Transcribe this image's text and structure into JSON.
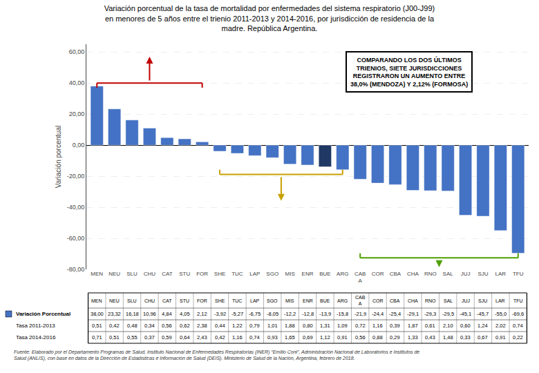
{
  "chart_data": {
    "type": "bar",
    "title": "Variación porcentual de la tasa de mortalidad por enfermedades del sistema respiratorio (J00-J99)\nen menores de 5 años entre el trienio 2011-2013 y 2014-2016, por jurisdicción de residencia de la\nmadre. República Argentina.",
    "ylabel": "Variación porcentual",
    "categories": [
      "MEN",
      "NEU",
      "SLU",
      "CHU",
      "CAT",
      "STU",
      "FOR",
      "SHE",
      "TUC",
      "LAP",
      "SGO",
      "MIS",
      "ENR",
      "BUE",
      "ARG",
      "CAB\nA",
      "COR",
      "CBA",
      "CHA",
      "RNO",
      "SAL",
      "JUJ",
      "SJU",
      "LAR",
      "TFU"
    ],
    "values": [
      38.0,
      23.32,
      16.18,
      10.96,
      4.84,
      4.05,
      2.12,
      -3.92,
      -5.27,
      -6.75,
      -8.05,
      -12.2,
      -12.8,
      -13.9,
      -15.8,
      -21.9,
      -24.4,
      -25.4,
      -29.1,
      -29.3,
      -29.5,
      -45.1,
      -45.7,
      -55.0,
      -69.6
    ],
    "colors": [
      "#4472C4",
      "#4472C4",
      "#4472C4",
      "#4472C4",
      "#4472C4",
      "#4472C4",
      "#4472C4",
      "#4472C4",
      "#4472C4",
      "#4472C4",
      "#4472C4",
      "#4472C4",
      "#4472C4",
      "#1F3864",
      "#4472C4",
      "#4472C4",
      "#4472C4",
      "#4472C4",
      "#4472C4",
      "#4472C4",
      "#4472C4",
      "#4472C4",
      "#4472C4",
      "#4472C4",
      "#4472C4"
    ],
    "ylim": [
      -80,
      65
    ],
    "yticks": [
      {
        "value": -80,
        "label": "-80,00"
      },
      {
        "value": -60,
        "label": "-60,00"
      },
      {
        "value": -40,
        "label": "-40,00"
      },
      {
        "value": -20,
        "label": "-20,00"
      },
      {
        "value": 0,
        "label": "0,00"
      },
      {
        "value": 20,
        "label": "20,00"
      },
      {
        "value": 40,
        "label": "40,00"
      },
      {
        "value": 60,
        "label": "60,00"
      }
    ],
    "grid": true,
    "annotation": "COMPARANDO LOS DOS ÚLTIMOS\nTRIENIOS, SIETE JURISDICCIONES\nREGISTRARON UN AUMENTO ENTRE\n38,0% (MENDOZA) Y 2,12% (FORMOSA)",
    "brackets": [
      {
        "from": "MEN",
        "to": "FOR",
        "color": "#C00000",
        "direction": "up"
      },
      {
        "from": "SHE",
        "to": "ARG",
        "color": "#C8A000",
        "direction": "down"
      },
      {
        "from": "CAB\nA",
        "to": "TFU",
        "color": "#4EA000",
        "direction": "down"
      }
    ],
    "table": [
      {
        "label": "Variación Porcentual",
        "cells": [
          "38,00",
          "23,32",
          "16,18",
          "10,96",
          "4,84",
          "4,05",
          "2,12",
          "-3,92",
          "-5,27",
          "-6,75",
          "-8,05",
          "-12,2",
          "-12,8",
          "-13,9",
          "-15,8",
          "-21,9",
          "-24,4",
          "-25,4",
          "-29,1",
          "-29,3",
          "-29,5",
          "-45,1",
          "-45,7",
          "-55,0",
          "-69,6"
        ]
      },
      {
        "label": "Tasa 2011-2013",
        "cells": [
          "0,51",
          "0,42",
          "0,48",
          "0,34",
          "0,56",
          "0,62",
          "2,38",
          "0,44",
          "1,22",
          "0,79",
          "1,01",
          "1,88",
          "0,80",
          "1,31",
          "1,09",
          "0,72",
          "1,16",
          "0,39",
          "1,87",
          "0,61",
          "2,10",
          "0,60",
          "1,24",
          "2,02",
          "0,74"
        ]
      },
      {
        "label": "Tasa 2014-2016",
        "cells": [
          "0,71",
          "0,51",
          "0,55",
          "0,37",
          "0,59",
          "0,64",
          "2,43",
          "0,42",
          "1,16",
          "0,74",
          "0,93",
          "1,65",
          "0,69",
          "1,12",
          "0,91",
          "0,56",
          "0,88",
          "0,29",
          "1,33",
          "0,43",
          "1,48",
          "0,33",
          "0,67",
          "0,91",
          "0,22"
        ]
      }
    ],
    "source": "Fuente: Elaborado por el Departamento Programas de Salud, Instituto Nacional de Enfermedades Respiratorias (INER) “Emilio Coni”, Administración Nacional de Laboratorios e Institutos de\nSalud (ANLIS), con base en datos de la Dirección de Estadísticas e Información de Salud (DEIS). Ministerio de Salud de la Nación, Argentina, febrero de 2018."
  }
}
